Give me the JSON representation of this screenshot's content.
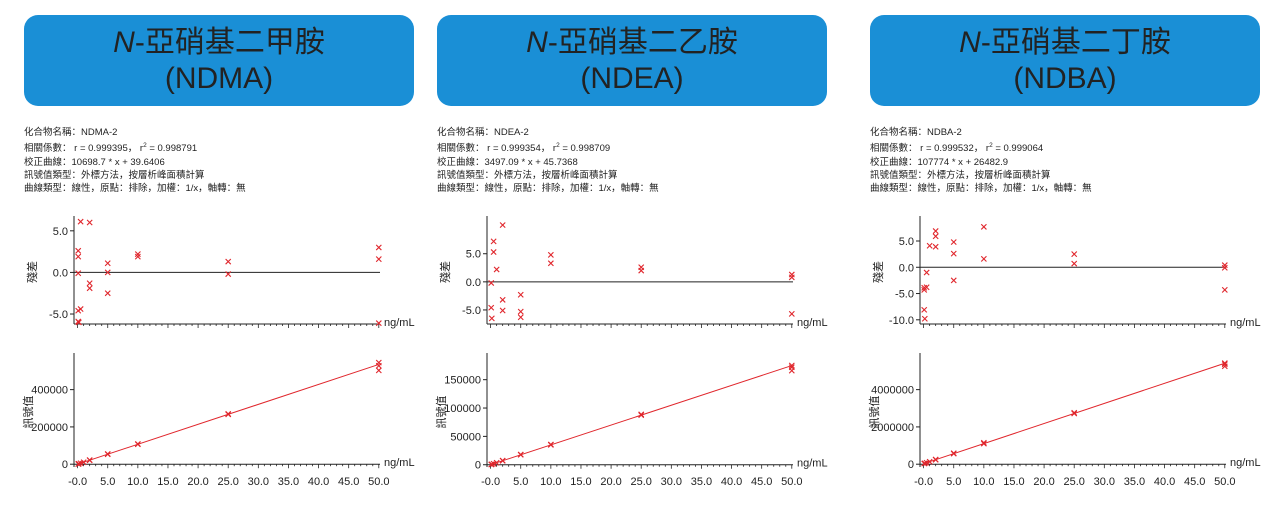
{
  "theme": {
    "banner_color": "#1a8fd6",
    "marker_color": "#e0262c",
    "fit_line_color": "#e0262c"
  },
  "chart_data": [
    {
      "type": "scatter",
      "banner": {
        "prefix": "N",
        "title_rest": "-亞硝基二甲胺",
        "abbr": "(NDMA)"
      },
      "info": {
        "compound": "化合物名稱：NDMA-2",
        "correlation": "相關係數： r = 0.999395， r",
        "r2_value": " = 0.998791",
        "calibration": "校正曲線：10698.7 * x + 39.6406",
        "signal_type": "訊號值類型：外標方法，按層析峰面積計算",
        "curve_type": "曲線類型：線性，原點：排除，加權：1/x，軸轉：無"
      },
      "residual": {
        "ylabel": "殘差",
        "xunit": "ng/mL",
        "ylim": [
          -6.2,
          6.3
        ],
        "yticks": [
          5.0,
          0.0,
          -5.0
        ],
        "ytick_labels": [
          "5.0",
          "0.0",
          "-5.0"
        ],
        "points": [
          [
            0.1,
            2.6
          ],
          [
            0.1,
            1.9
          ],
          [
            0.1,
            -0.1
          ],
          [
            0.1,
            -4.6
          ],
          [
            0.1,
            -5.9
          ],
          [
            0.2,
            -6.0
          ],
          [
            0.5,
            6.1
          ],
          [
            0.5,
            -4.4
          ],
          [
            2.0,
            6.0
          ],
          [
            2.0,
            -1.3
          ],
          [
            2.0,
            -1.9
          ],
          [
            5.0,
            1.1
          ],
          [
            5.0,
            0.0
          ],
          [
            5.0,
            -2.5
          ],
          [
            10.0,
            2.2
          ],
          [
            10.0,
            1.9
          ],
          [
            25.0,
            1.3
          ],
          [
            25.0,
            -0.2
          ],
          [
            50.0,
            3.0
          ],
          [
            50.0,
            1.6
          ],
          [
            50.0,
            -6.1
          ]
        ]
      },
      "calibration_plot": {
        "ylabel": "訊號值",
        "xunit": "ng/mL",
        "ylim": [
          -15000,
          575000
        ],
        "yticks": [
          400000,
          200000,
          0
        ],
        "ytick_labels": [
          "400000",
          "200000",
          "0"
        ],
        "points": [
          [
            0.1,
            1100
          ],
          [
            0.2,
            2200
          ],
          [
            0.5,
            5400
          ],
          [
            1.0,
            10700
          ],
          [
            2.0,
            21400
          ],
          [
            2.0,
            22100
          ],
          [
            5.0,
            53500
          ],
          [
            5.0,
            55000
          ],
          [
            10.0,
            107000
          ],
          [
            10.0,
            108500
          ],
          [
            25.0,
            267500
          ],
          [
            25.0,
            270000
          ],
          [
            50.0,
            545000
          ],
          [
            50.0,
            528000
          ],
          [
            50.0,
            503000
          ]
        ],
        "fit": {
          "slope": 10698.7,
          "intercept": 39.6406
        }
      },
      "xaxis": {
        "xlim": [
          -0.6,
          50.2
        ],
        "ticks": [
          0,
          5,
          10,
          15,
          20,
          25,
          30,
          35,
          40,
          45,
          50
        ],
        "tick_labels": [
          "-0.0",
          "5.0",
          "10.0",
          "15.0",
          "20.0",
          "25.0",
          "30.0",
          "35.0",
          "40.0",
          "45.0",
          "50.0"
        ]
      }
    },
    {
      "type": "scatter",
      "banner": {
        "prefix": "N",
        "title_rest": "-亞硝基二乙胺",
        "abbr": "(NDEA)"
      },
      "info": {
        "compound": "化合物名稱：NDEA-2",
        "correlation": "相關係數： r = 0.999354， r",
        "r2_value": " = 0.998709",
        "calibration": "校正曲線：3497.09 * x + 45.7368",
        "signal_type": "訊號值類型：外標方法，按層析峰面積計算",
        "curve_type": "曲線類型：線性，原點：排除，加權：1/x，軸轉：無"
      },
      "residual": {
        "ylabel": "殘差",
        "xunit": "ng/mL",
        "ylim": [
          -7.5,
          11
        ],
        "yticks": [
          5.0,
          0.0,
          -5.0
        ],
        "ytick_labels": [
          "5.0",
          "0.0",
          "-5.0"
        ],
        "points": [
          [
            0.1,
            -0.2
          ],
          [
            0.1,
            -4.6
          ],
          [
            0.2,
            -6.5
          ],
          [
            0.5,
            7.2
          ],
          [
            0.5,
            5.3
          ],
          [
            1.0,
            2.2
          ],
          [
            2.0,
            10.1
          ],
          [
            2.0,
            -3.2
          ],
          [
            2.0,
            -5.1
          ],
          [
            5.0,
            -2.3
          ],
          [
            5.0,
            -5.3
          ],
          [
            5.0,
            -6.3
          ],
          [
            10.0,
            4.8
          ],
          [
            10.0,
            3.3
          ],
          [
            25.0,
            2.6
          ],
          [
            25.0,
            2.0
          ],
          [
            50.0,
            1.3
          ],
          [
            50.0,
            0.8
          ],
          [
            50.0,
            -5.7
          ]
        ]
      },
      "calibration_plot": {
        "ylabel": "訊號值",
        "xunit": "ng/mL",
        "ylim": [
          -4000,
          190000
        ],
        "yticks": [
          150000,
          100000,
          50000,
          0
        ],
        "ytick_labels": [
          "150000",
          "100000",
          "50000",
          "0"
        ],
        "points": [
          [
            0.1,
            400
          ],
          [
            0.2,
            750
          ],
          [
            0.5,
            1800
          ],
          [
            1.0,
            3500
          ],
          [
            2.0,
            7000
          ],
          [
            2.0,
            7300
          ],
          [
            5.0,
            17500
          ],
          [
            5.0,
            18000
          ],
          [
            10.0,
            35000
          ],
          [
            10.0,
            35800
          ],
          [
            25.0,
            87500
          ],
          [
            25.0,
            88800
          ],
          [
            50.0,
            175000
          ],
          [
            50.0,
            172000
          ],
          [
            50.0,
            166000
          ]
        ],
        "fit": {
          "slope": 3497.09,
          "intercept": 45.7368
        }
      },
      "xaxis": {
        "xlim": [
          -0.6,
          50.2
        ],
        "ticks": [
          0,
          5,
          10,
          15,
          20,
          25,
          30,
          35,
          40,
          45,
          50
        ],
        "tick_labels": [
          "-0.0",
          "5.0",
          "10.0",
          "15.0",
          "20.0",
          "25.0",
          "30.0",
          "35.0",
          "40.0",
          "45.0",
          "50.0"
        ]
      }
    },
    {
      "type": "scatter",
      "banner": {
        "prefix": "N",
        "title_rest": "-亞硝基二丁胺",
        "abbr": "(NDBA)"
      },
      "info": {
        "compound": "化合物名稱：NDBA-2",
        "correlation": "相關係數： r = 0.999532， r",
        "r2_value": " = 0.999064",
        "calibration": "校正曲線：107774 * x + 26482.9",
        "signal_type": "訊號值類型：外標方法，按層析峰面積計算",
        "curve_type": "曲線類型：線性，原點：排除，加權：1/x，軸轉：無"
      },
      "residual": {
        "ylabel": "殘差",
        "xunit": "ng/mL",
        "ylim": [
          -10.8,
          9
        ],
        "yticks": [
          5.0,
          0.0,
          -5.0,
          -10.0
        ],
        "ytick_labels": [
          "5.0",
          "0.0",
          "-5.0",
          "-10.0"
        ],
        "points": [
          [
            0.1,
            -3.9
          ],
          [
            0.1,
            -4.3
          ],
          [
            0.1,
            -8.1
          ],
          [
            0.2,
            -9.8
          ],
          [
            0.5,
            -1.0
          ],
          [
            0.5,
            -3.8
          ],
          [
            1.0,
            4.1
          ],
          [
            2.0,
            6.9
          ],
          [
            2.0,
            5.9
          ],
          [
            2.0,
            3.9
          ],
          [
            5.0,
            4.8
          ],
          [
            5.0,
            2.6
          ],
          [
            5.0,
            -2.5
          ],
          [
            10.0,
            7.7
          ],
          [
            10.0,
            1.6
          ],
          [
            25.0,
            2.5
          ],
          [
            25.0,
            0.7
          ],
          [
            50.0,
            0.4
          ],
          [
            50.0,
            -0.1
          ],
          [
            50.0,
            -4.3
          ]
        ]
      },
      "calibration_plot": {
        "ylabel": "訊號值",
        "xunit": "ng/mL",
        "ylim": [
          -150000,
          5750000
        ],
        "yticks": [
          4000000,
          2000000,
          0
        ],
        "ytick_labels": [
          "4000000",
          "2000000",
          "0"
        ],
        "points": [
          [
            0.1,
            35000
          ],
          [
            0.2,
            48000
          ],
          [
            0.5,
            80000
          ],
          [
            1.0,
            134000
          ],
          [
            2.0,
            240000
          ],
          [
            2.0,
            250000
          ],
          [
            5.0,
            565000
          ],
          [
            5.0,
            590000
          ],
          [
            10.0,
            1100000
          ],
          [
            10.0,
            1150000
          ],
          [
            25.0,
            2720000
          ],
          [
            25.0,
            2760000
          ],
          [
            50.0,
            5420000
          ],
          [
            50.0,
            5360000
          ],
          [
            50.0,
            5250000
          ]
        ],
        "fit": {
          "slope": 107774,
          "intercept": 26482.9
        }
      },
      "xaxis": {
        "xlim": [
          -0.6,
          50.2
        ],
        "ticks": [
          0,
          5,
          10,
          15,
          20,
          25,
          30,
          35,
          40,
          45,
          50
        ],
        "tick_labels": [
          "-0.0",
          "5.0",
          "10.0",
          "15.0",
          "20.0",
          "25.0",
          "30.0",
          "35.0",
          "40.0",
          "45.0",
          "50.0"
        ]
      }
    }
  ]
}
